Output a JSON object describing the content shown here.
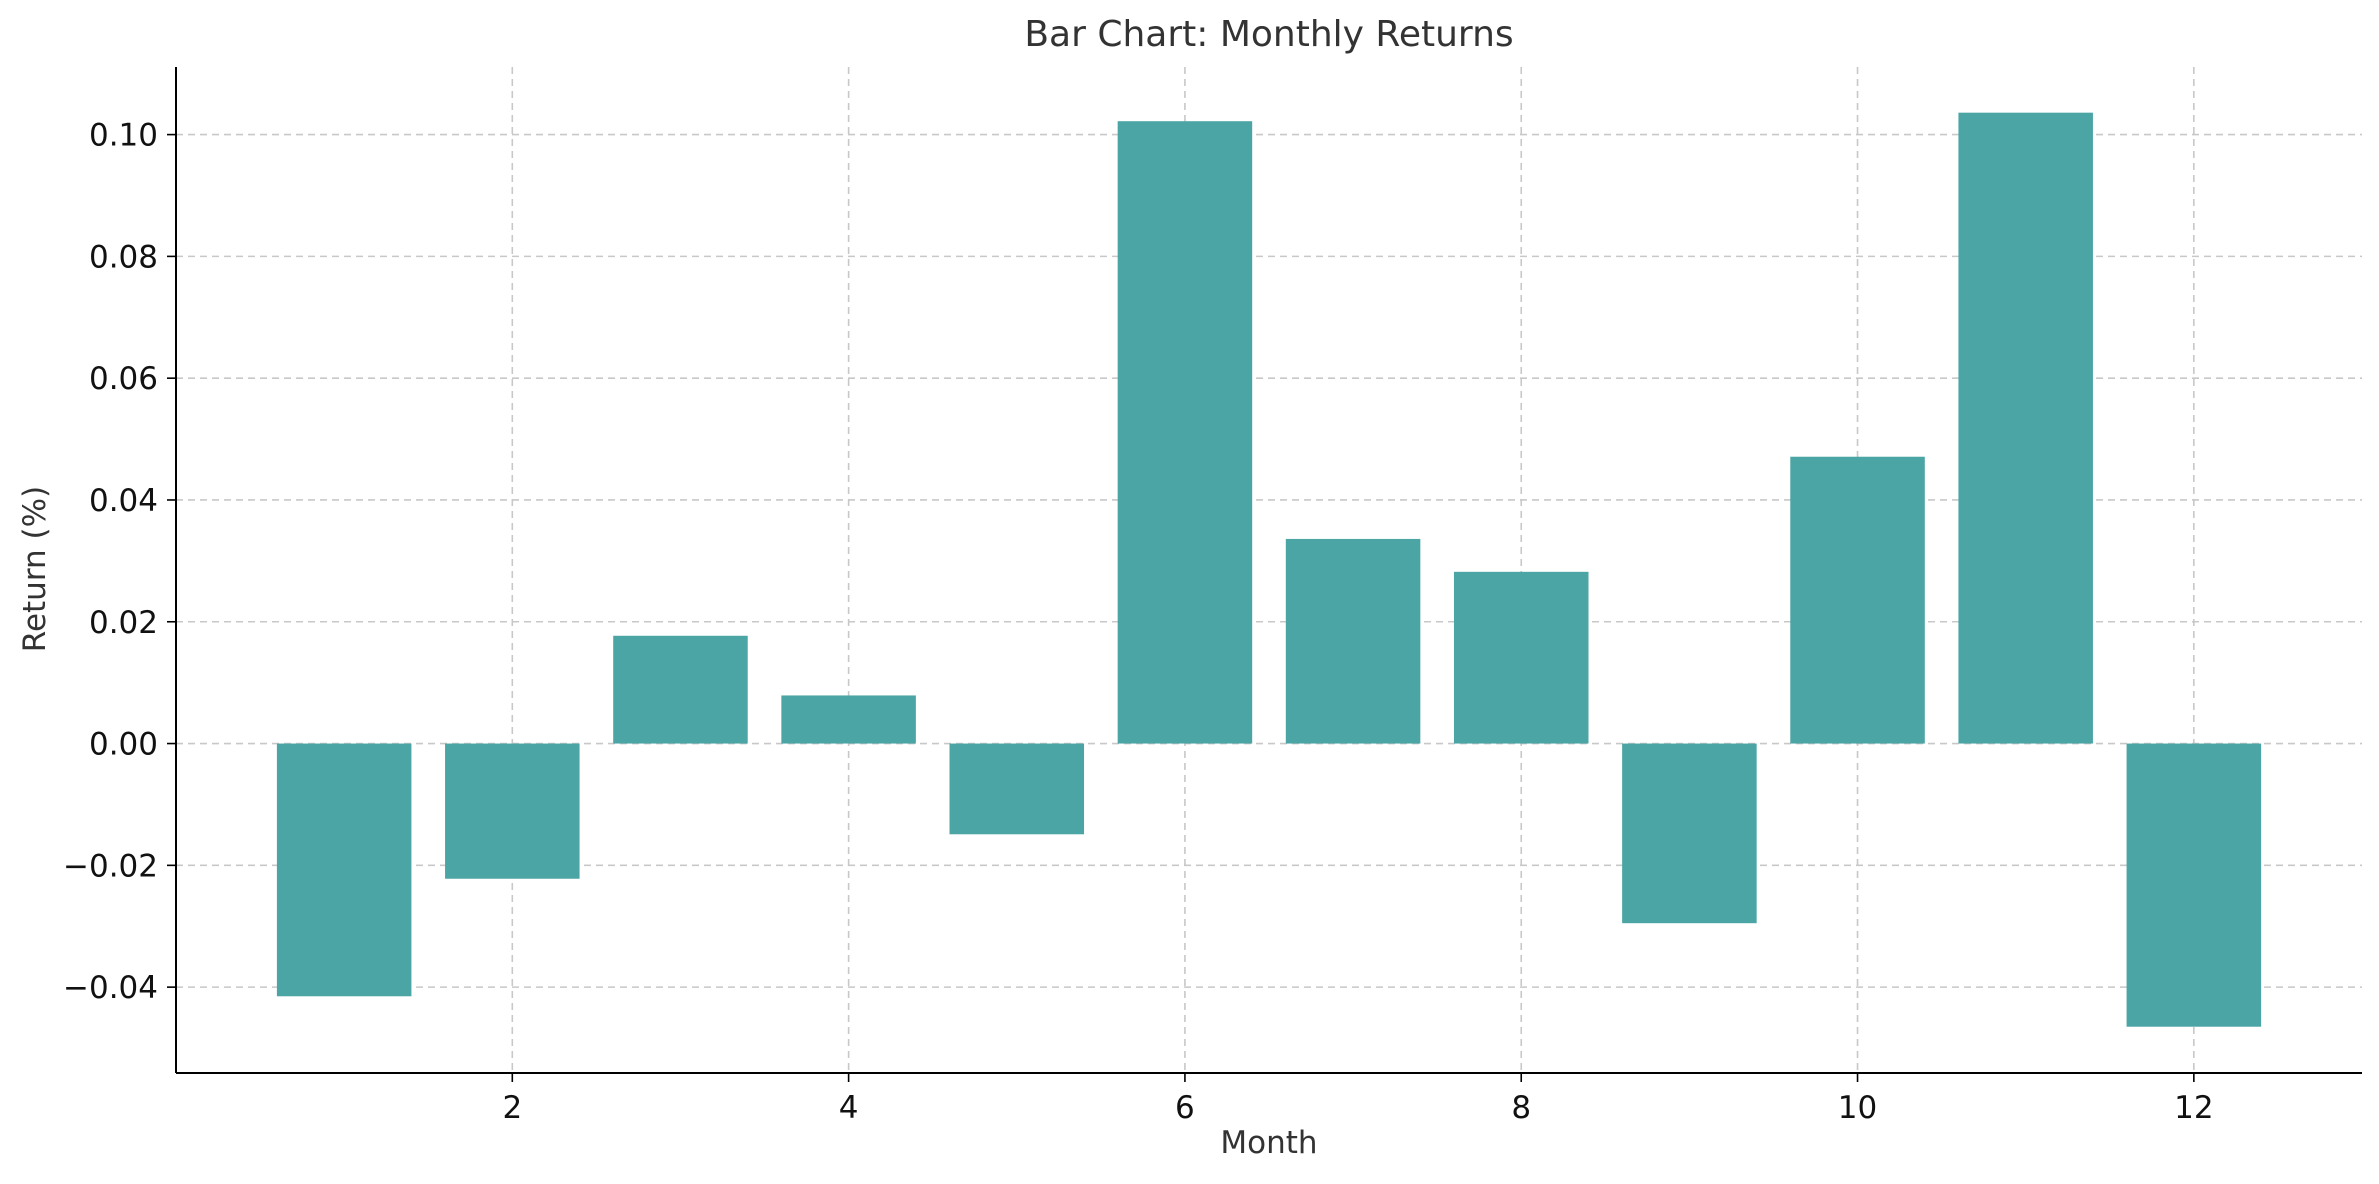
{
  "chart_data": {
    "type": "bar",
    "title": "Bar Chart: Monthly Returns",
    "xlabel": "Month",
    "ylabel": "Return (%)",
    "x": [
      1,
      2,
      3,
      4,
      5,
      6,
      7,
      8,
      9,
      10,
      11,
      12
    ],
    "values": [
      -0.0415,
      -0.0222,
      0.0177,
      0.0079,
      -0.0149,
      0.1022,
      0.0336,
      0.0282,
      -0.0295,
      0.0471,
      0.1036,
      -0.0465
    ],
    "xticks": [
      2,
      4,
      6,
      8,
      10,
      12
    ],
    "xtick_labels": [
      "2",
      "4",
      "6",
      "8",
      "10",
      "12"
    ],
    "yticks": [
      -0.04,
      -0.02,
      0.0,
      0.02,
      0.04,
      0.06,
      0.08,
      0.1
    ],
    "ytick_labels": [
      "−0.04",
      "−0.02",
      "0.00",
      "0.02",
      "0.04",
      "0.06",
      "0.08",
      "0.10"
    ],
    "xlim": [
      0.0,
      13.0
    ],
    "ylim": [
      -0.0541,
      0.1111
    ],
    "bar_color": "#4ca5a5",
    "grid": true,
    "legend": false
  }
}
